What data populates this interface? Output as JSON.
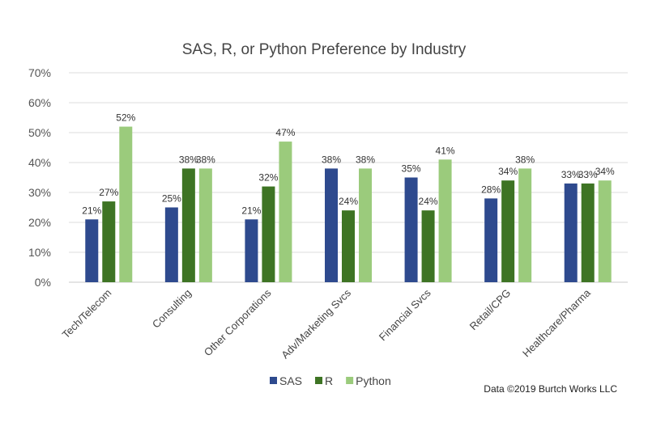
{
  "chart_data": {
    "type": "bar",
    "title": "SAS, R, or Python Preference by Industry",
    "xlabel": "",
    "ylabel": "",
    "ylim": [
      0,
      70
    ],
    "yticks": [
      "0%",
      "10%",
      "20%",
      "30%",
      "40%",
      "50%",
      "60%",
      "70%"
    ],
    "grid": true,
    "legend_position": "bottom",
    "categories": [
      "Tech/Telecom",
      "Consulting",
      "Other Corporations",
      "Adv/Marketing Svcs",
      "Financial Svcs",
      "Retail/CPG",
      "Healthcare/Pharma"
    ],
    "series": [
      {
        "name": "SAS",
        "color": "#2E4A8E",
        "values": [
          21,
          25,
          21,
          38,
          35,
          28,
          33
        ]
      },
      {
        "name": "R",
        "color": "#3E7424",
        "values": [
          27,
          38,
          32,
          24,
          24,
          34,
          33
        ]
      },
      {
        "name": "Python",
        "color": "#9BCB7C",
        "values": [
          52,
          38,
          47,
          38,
          41,
          38,
          34
        ]
      }
    ],
    "value_suffix": "%",
    "annotation": "Data ©2019 Burtch Works LLC"
  }
}
